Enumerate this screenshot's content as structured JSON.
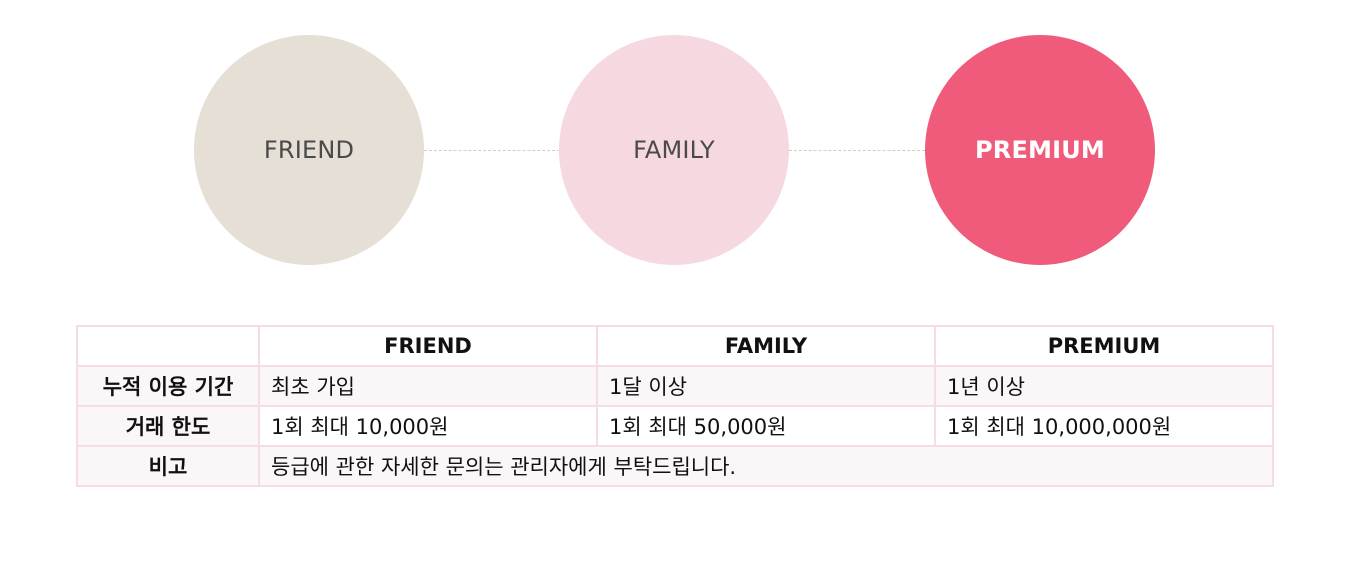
{
  "grades": {
    "friend": "FRIEND",
    "family": "FAMILY",
    "premium": "PREMIUM"
  },
  "table": {
    "headers": [
      "",
      "FRIEND",
      "FAMILY",
      "PREMIUM"
    ],
    "rows": [
      {
        "label": "누적 이용 기간",
        "friend": "최초 가입",
        "family": "1달 이상",
        "premium": "1년 이상"
      },
      {
        "label": "거래 한도",
        "friend": "1회 최대 10,000원",
        "family": "1회 최대 50,000원",
        "premium": "1회 최대 10,000,000원"
      },
      {
        "label": "비고",
        "note": "등급에 관한 자세한 문의는 관리자에게 부탁드립니다."
      }
    ]
  },
  "colors": {
    "friend": "#e5dfd5",
    "family": "#f6d9e0",
    "premium": "#f15b7b",
    "table_border": "#f6dde5",
    "row_tint": "#fbf6f7"
  }
}
